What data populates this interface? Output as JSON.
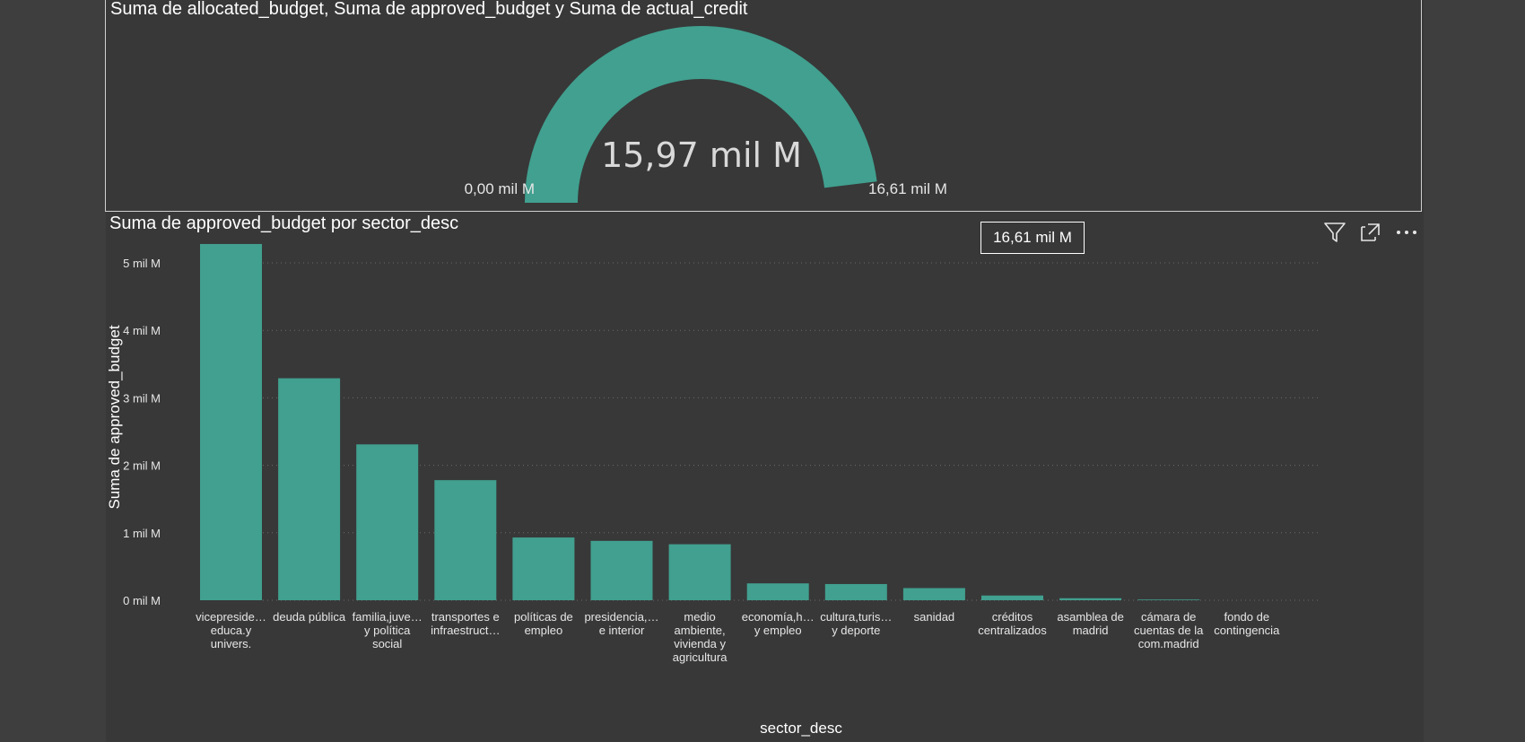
{
  "gauge": {
    "title": "Suma de allocated_budget, Suma de approved_budget y Suma de actual_credit",
    "value": 15.97,
    "value_label": "15,97 mil M",
    "min": 0,
    "min_label": "0,00 mil M",
    "max": 16.61,
    "max_label": "16,61 mil M",
    "fill_color": "#41a08f"
  },
  "bar_panel": {
    "title": "Suma de approved_budget por sector_desc",
    "tooltip": "16,61 mil M",
    "toolbar": {
      "filter_icon": "filter-icon",
      "focus_icon": "focus-mode-icon",
      "more_icon": "more-options-icon"
    }
  },
  "chart_data": {
    "type": "bar",
    "title": "Suma de approved_budget por sector_desc",
    "xlabel": "sector_desc",
    "ylabel": "Suma de approved_budget",
    "ylim": [
      0,
      5.5
    ],
    "yticks": [
      0,
      1,
      2,
      3,
      4,
      5
    ],
    "ytick_labels": [
      "0 mil M",
      "1 mil M",
      "2 mil M",
      "3 mil M",
      "4 mil M",
      "5 mil M"
    ],
    "grid": true,
    "bar_color": "#41a08f",
    "categories": [
      [
        "vicepreside…",
        "educa.y",
        "univers."
      ],
      [
        "deuda pública"
      ],
      [
        "familia,juve…",
        "y política",
        "social"
      ],
      [
        "transportes e",
        "infraestruct…"
      ],
      [
        "políticas de",
        "empleo"
      ],
      [
        "presidencia,…",
        "e interior"
      ],
      [
        "medio",
        "ambiente,",
        "vivienda y",
        "agricultura"
      ],
      [
        "economía,h…",
        "y empleo"
      ],
      [
        "cultura,turis…",
        "y deporte"
      ],
      [
        "sanidad"
      ],
      [
        "créditos",
        "centralizados"
      ],
      [
        "asamblea de",
        "madrid"
      ],
      [
        "cámara de",
        "cuentas de la",
        "com.madrid"
      ],
      [
        "fondo de",
        "contingencia"
      ]
    ],
    "values": [
      5.28,
      3.29,
      2.31,
      1.78,
      0.93,
      0.88,
      0.83,
      0.25,
      0.24,
      0.18,
      0.07,
      0.03,
      0.01,
      0.0
    ]
  }
}
